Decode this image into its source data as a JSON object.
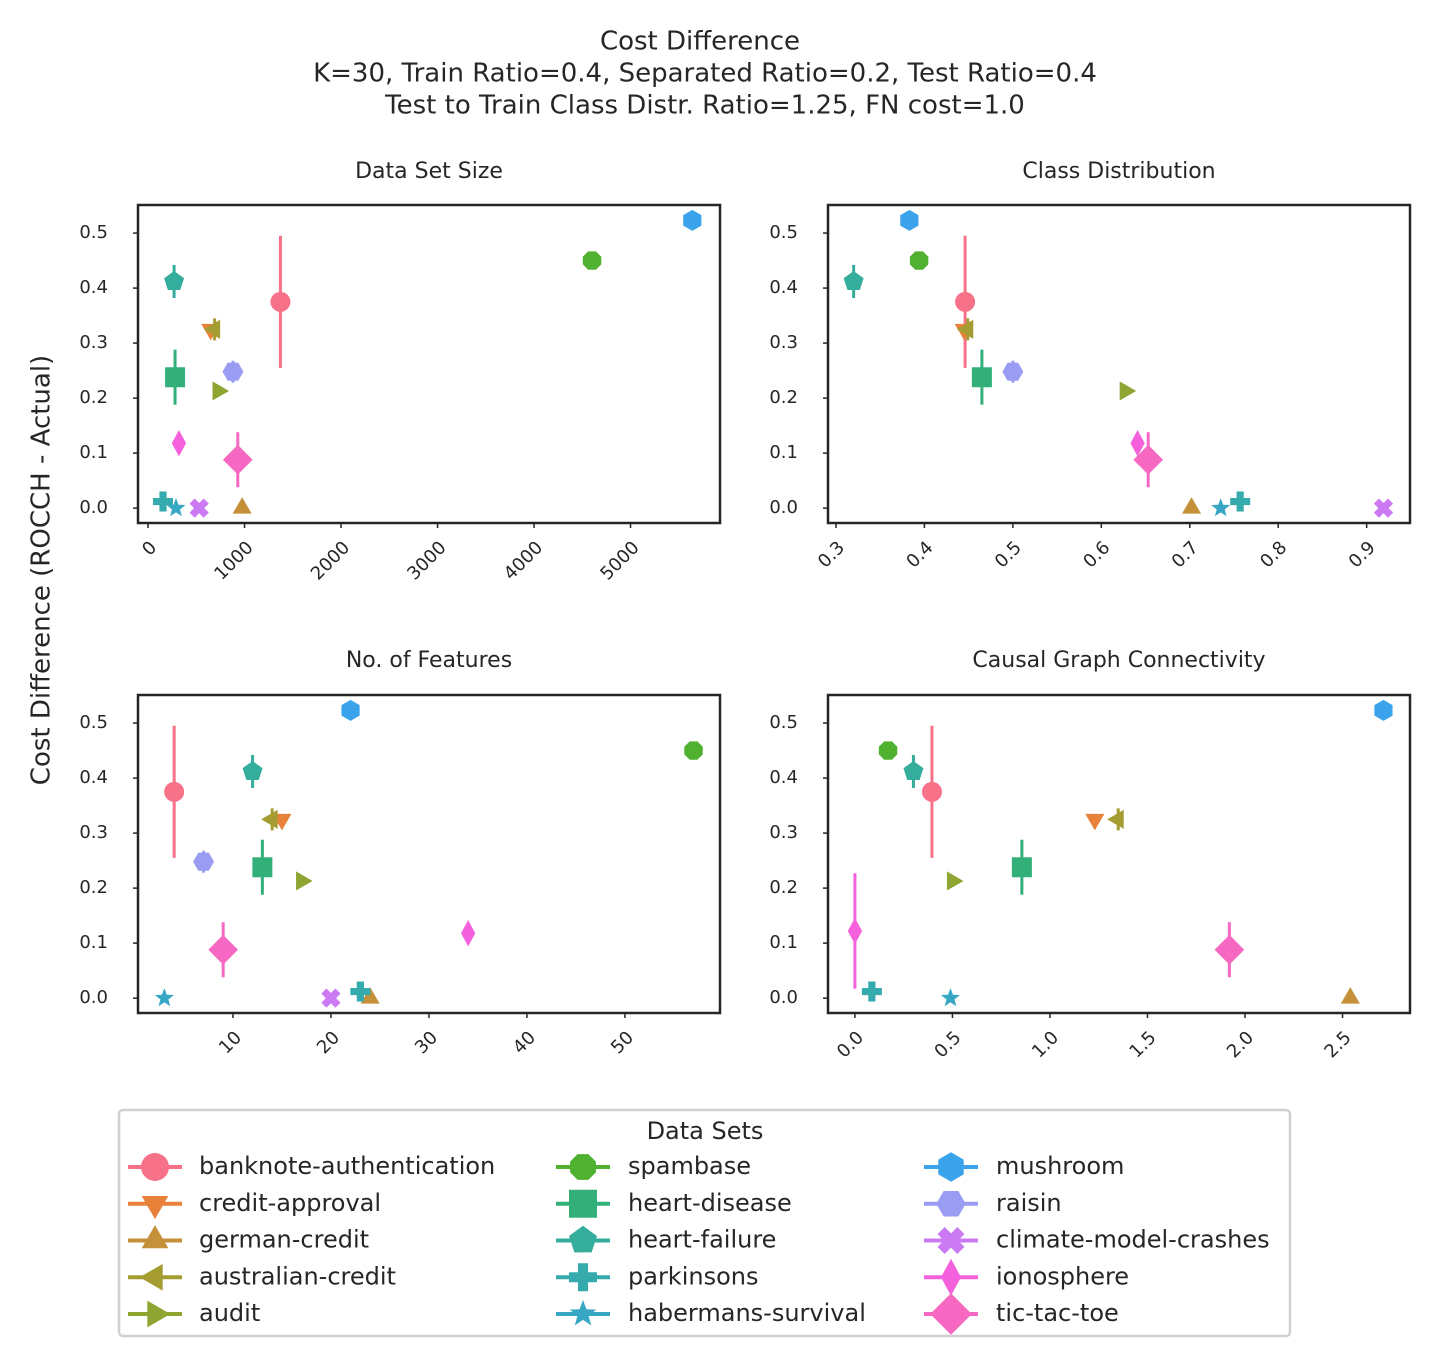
{
  "figure": {
    "title_lines": [
      "Cost Difference",
      "K=30, Train Ratio=0.4, Separated Ratio=0.2, Test Ratio=0.4",
      "Test to Train Class Distr. Ratio=1.25, FN cost=1.0"
    ],
    "ylabel": "Cost Difference (ROCCH - Actual)"
  },
  "legend": {
    "title": "Data Sets",
    "series": [
      {
        "name": "banknote-authentication",
        "color": "#f77189",
        "marker": "o"
      },
      {
        "name": "credit-approval",
        "color": "#e8823a",
        "marker": "v"
      },
      {
        "name": "german-credit",
        "color": "#c5903a",
        "marker": "^"
      },
      {
        "name": "australian-credit",
        "color": "#a69d32",
        "marker": "<"
      },
      {
        "name": "audit",
        "color": "#8ea531",
        "marker": ">"
      },
      {
        "name": "spambase",
        "color": "#50b131",
        "marker": "8"
      },
      {
        "name": "heart-disease",
        "color": "#33b07a",
        "marker": "s"
      },
      {
        "name": "heart-failure",
        "color": "#35ad9c",
        "marker": "p"
      },
      {
        "name": "parkinsons",
        "color": "#36abae",
        "marker": "P"
      },
      {
        "name": "habermans-survival",
        "color": "#38a7c4",
        "marker": "*"
      },
      {
        "name": "mushroom",
        "color": "#3ba3ec",
        "marker": "h"
      },
      {
        "name": "raisin",
        "color": "#9a9cf4",
        "marker": "H"
      },
      {
        "name": "climate-model-crashes",
        "color": "#cc79f4",
        "marker": "X"
      },
      {
        "name": "ionosphere",
        "color": "#f561dd",
        "marker": "d"
      },
      {
        "name": "tic-tac-toe",
        "color": "#f668c2",
        "marker": "D"
      }
    ]
  },
  "chart_data": [
    {
      "type": "scatter",
      "title": "Data Set Size",
      "x": [
        1372,
        650,
        975,
        690,
        725,
        4601,
        280,
        270,
        155,
        290,
        5640,
        880,
        530,
        320,
        930
      ],
      "values": [
        0.375,
        0.325,
        0,
        0.325,
        0.213,
        0.45,
        0.238,
        0.412,
        0.012,
        0,
        0.523,
        0.248,
        0,
        0.118,
        0.088
      ],
      "errors": [
        0.12,
        0,
        0,
        0.02,
        0,
        0,
        0.05,
        0.03,
        0.015,
        0,
        0,
        0.02,
        0,
        0,
        0.05
      ],
      "xlim": [
        -104,
        5927
      ],
      "xticks": [
        0,
        1000,
        2000,
        3000,
        4000,
        5000
      ],
      "ylim": [
        -0.027,
        0.551
      ],
      "yticks": [
        {
          "value": 0,
          "label": "0.0"
        },
        0.1,
        0.2,
        0.3,
        0.4,
        0.5
      ]
    },
    {
      "type": "scatter",
      "title": "Class Distribution",
      "x": [
        0.446,
        0.445,
        0.702,
        0.449,
        0.627,
        0.394,
        0.465,
        0.32,
        0.757,
        0.735,
        0.383,
        0.5,
        0.919,
        0.641,
        0.653
      ],
      "values": [
        0.375,
        0.325,
        0,
        0.325,
        0.213,
        0.45,
        0.238,
        0.412,
        0.012,
        0,
        0.523,
        0.248,
        0,
        0.118,
        0.088
      ],
      "errors": [
        0.12,
        0,
        0,
        0.02,
        0,
        0,
        0.05,
        0.03,
        0.015,
        0,
        0,
        0.02,
        0,
        0,
        0.05
      ],
      "xlim": [
        0.291,
        0.949
      ],
      "xticks": [
        0.3,
        0.4,
        0.5,
        0.6,
        0.7,
        0.8,
        0.9
      ],
      "ylim": [
        -0.027,
        0.551
      ],
      "yticks": [
        {
          "value": 0,
          "label": "0.0"
        },
        0.1,
        0.2,
        0.3,
        0.4,
        0.5
      ]
    },
    {
      "type": "scatter",
      "title": "No. of Features",
      "x": [
        4,
        15,
        24,
        14,
        17,
        57,
        13,
        12,
        23,
        3,
        22,
        7,
        20,
        34,
        9
      ],
      "values": [
        0.375,
        0.325,
        0,
        0.325,
        0.213,
        0.45,
        0.238,
        0.412,
        0.012,
        0,
        0.523,
        0.248,
        0,
        0.118,
        0.088
      ],
      "errors": [
        0.12,
        0,
        0,
        0.02,
        0,
        0,
        0.05,
        0.03,
        0.015,
        0,
        0,
        0.02,
        0,
        0,
        0.05
      ],
      "xlim": [
        0.31,
        59.7
      ],
      "xticks": [
        10,
        20,
        30,
        40,
        50
      ],
      "ylim": [
        -0.027,
        0.551
      ],
      "yticks": [
        {
          "value": 0,
          "label": "0.0"
        },
        0.1,
        0.2,
        0.3,
        0.4,
        0.5
      ]
    },
    {
      "type": "scatter",
      "title": "Causal Graph Connectivity",
      "x": [
        0.395,
        1.23,
        2.54,
        1.35,
        0.5,
        0.17,
        0.856,
        0.3,
        0.087,
        0.49,
        2.71,
        null,
        null,
        0,
        1.92
      ],
      "values": [
        0.375,
        0.325,
        0,
        0.325,
        0.213,
        0.45,
        0.238,
        0.412,
        0.012,
        0,
        0.523,
        null,
        null,
        0.122,
        0.088
      ],
      "errors": [
        0.12,
        0,
        0,
        0.02,
        0,
        0,
        0.05,
        0.03,
        0.015,
        0,
        0,
        null,
        null,
        0.105,
        0.05
      ],
      "xlim": [
        -0.138,
        2.846
      ],
      "xticks": [
        {
          "value": 0,
          "label": "0.0"
        },
        0.5,
        {
          "value": 1,
          "label": "1.0"
        },
        1.5,
        {
          "value": 2,
          "label": "2.0"
        },
        2.5
      ],
      "ylim": [
        -0.027,
        0.551
      ],
      "yticks": [
        {
          "value": 0,
          "label": "0.0"
        },
        0.1,
        0.2,
        0.3,
        0.4,
        0.5
      ]
    }
  ]
}
